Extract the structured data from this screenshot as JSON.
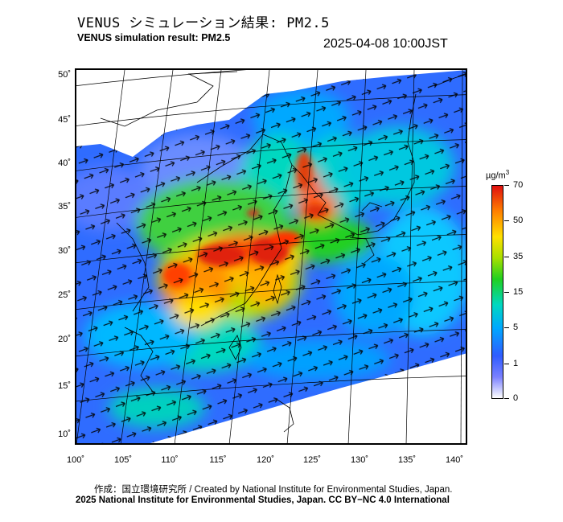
{
  "header": {
    "title_jp": "VENUS シミュレーション結果: PM2.5",
    "title_en": "VENUS simulation result: PM2.5",
    "timestamp": "2025-04-08 10:00JST"
  },
  "map": {
    "lat_labels": [
      "50˚",
      "45˚",
      "40˚",
      "35˚",
      "30˚",
      "25˚",
      "20˚",
      "15˚",
      "10˚"
    ],
    "lon_labels": [
      "100˚",
      "105˚",
      "110˚",
      "115˚",
      "120˚",
      "125˚",
      "130˚",
      "135˚",
      "140˚"
    ]
  },
  "legend": {
    "unit_text": "µg/m",
    "unit_sup": "3",
    "values": [
      "70",
      "50",
      "35",
      "15",
      "5",
      "1",
      "0"
    ],
    "colors": [
      "#ffffff",
      "#7a80ff",
      "#2f5cff",
      "#00a8ff",
      "#00d8c0",
      "#20d020",
      "#a8e000",
      "#ffe000",
      "#ff8000",
      "#e01010"
    ]
  },
  "footer": {
    "credit_line1": "作成：国立環境研究所 / Created by National Institute for Environmental Studies, Japan.",
    "credit_line2": "2025 National Institute for Environmental Studies, Japan. CC BY−NC 4.0 International"
  }
}
